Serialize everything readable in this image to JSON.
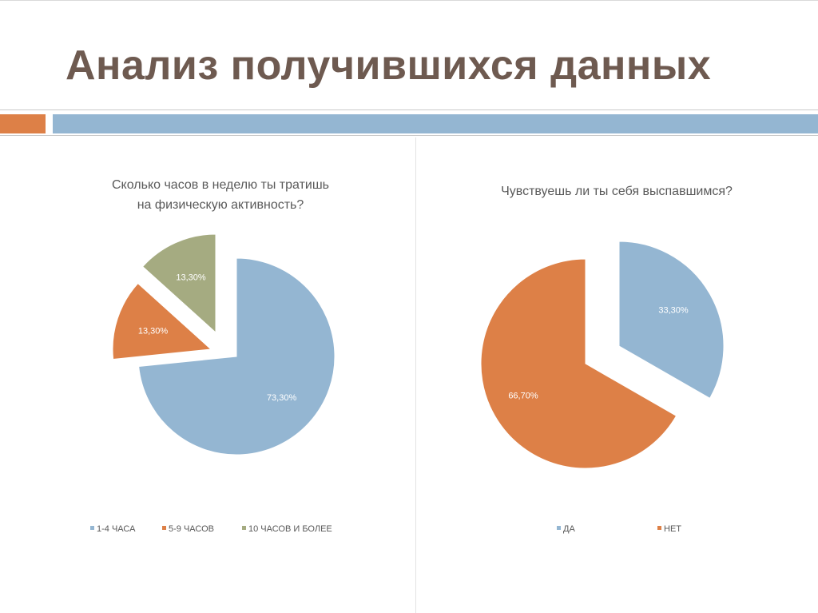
{
  "slide": {
    "title": "Анализ получившихся данных"
  },
  "colors": {
    "title": "#6e5a50",
    "band_orange": "#dd8047",
    "band_blue": "#94b6d2"
  },
  "chart_data": [
    {
      "type": "pie",
      "title_lines": [
        "Сколько часов в неделю ты тратишь",
        "на физическую активность?"
      ],
      "slices": [
        {
          "label": "1-4 ЧАСА",
          "value": 73.3,
          "data_label": "73,30%",
          "color": "#94b6d2"
        },
        {
          "label": "5-9 ЧАСОВ",
          "value": 13.3,
          "data_label": "13,30%",
          "color": "#dd8047"
        },
        {
          "label": "10 ЧАСОВ И БОЛЕЕ",
          "value": 13.3,
          "data_label": "13,30%",
          "color": "#a5ab81"
        }
      ],
      "exploded": true,
      "legend_position": "bottom"
    },
    {
      "type": "pie",
      "title_lines": [
        "Чувствуешь ли ты себя выспавшимся?"
      ],
      "slices": [
        {
          "label": "ДА",
          "value": 33.3,
          "data_label": "33,30%",
          "color": "#94b6d2"
        },
        {
          "label": "НЕТ",
          "value": 66.7,
          "data_label": "66,70%",
          "color": "#dd8047"
        }
      ],
      "exploded": true,
      "legend_position": "bottom"
    }
  ]
}
